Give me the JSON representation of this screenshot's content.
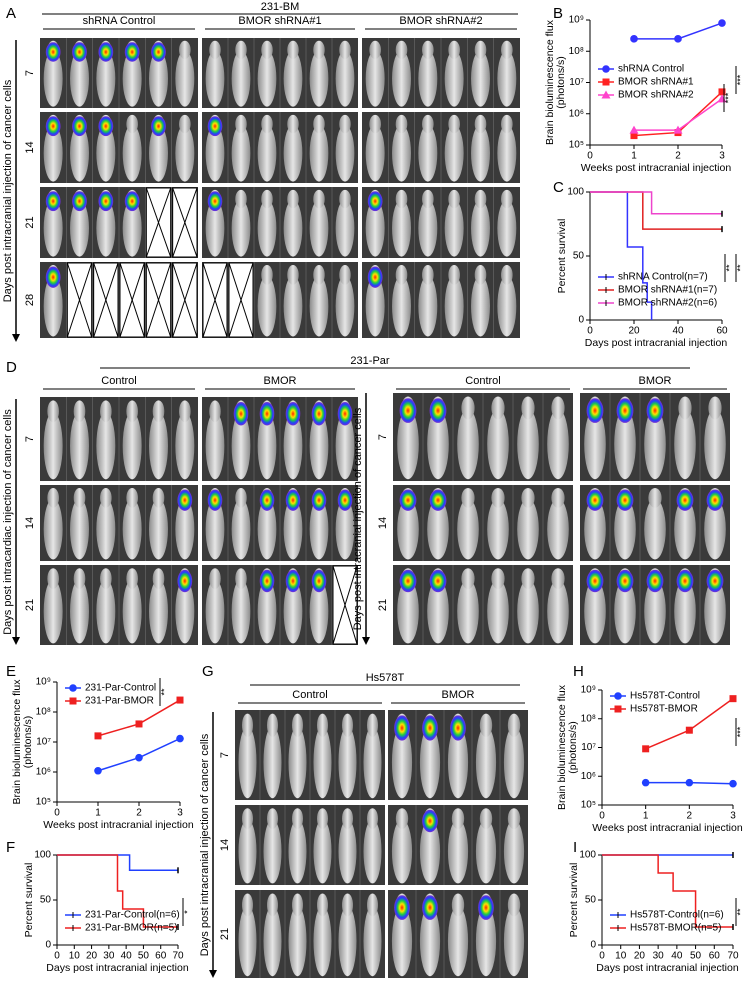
{
  "figure": {
    "panel_labels": [
      "A",
      "B",
      "C",
      "D",
      "E",
      "F",
      "G",
      "H",
      "I"
    ],
    "a": {
      "title": "231-BM",
      "groups": [
        "shRNA Control",
        "BMOR shRNA#1",
        "BMOR shRNA#2"
      ],
      "rows": [
        "7",
        "14",
        "21",
        "28"
      ],
      "axis_label": "Days post intracranial injection of cancer cells"
    },
    "d": {
      "title": "231-Par",
      "left": {
        "groups": [
          "Control",
          "BMOR"
        ],
        "rows": [
          "7",
          "14",
          "21"
        ],
        "axis_label": "Days post intracardiac injection of cancer cells"
      },
      "right": {
        "groups": [
          "Control",
          "BMOR"
        ],
        "rows": [
          "7",
          "14",
          "21"
        ],
        "axis_label": "Days post intracranial injection of cancer cells"
      }
    },
    "g": {
      "title": "Hs578T",
      "groups": [
        "Control",
        "BMOR"
      ],
      "rows": [
        "7",
        "14",
        "21"
      ],
      "axis_label": "Days post intracranial injection of cancer cells"
    }
  },
  "chart_data": [
    {
      "type": "line",
      "log_scale": true,
      "xlabel": "Weeks post intracranial injection",
      "ylabel": [
        "Brain bioluminescence flux",
        "(photons/s)"
      ],
      "x": [
        1,
        2,
        3
      ],
      "xlim": [
        0,
        3
      ],
      "xticks": [
        0,
        1,
        2,
        3
      ],
      "ylim": [
        100000,
        1000000000
      ],
      "yticks": [
        {
          "value": 100000,
          "label": "10⁵"
        },
        {
          "value": 1000000,
          "label": "10⁶"
        },
        {
          "value": 10000000,
          "label": "10⁷"
        },
        {
          "value": 100000000,
          "label": "10⁸"
        },
        {
          "value": 1000000000,
          "label": "10⁹"
        }
      ],
      "legend": "center left",
      "series": [
        {
          "name": "shRNA Control",
          "color": "#3333ff",
          "marker": "circle",
          "values": [
            250000000,
            250000000,
            800000000
          ]
        },
        {
          "name": "BMOR shRNA#1",
          "color": "#ff2222",
          "marker": "square",
          "values": [
            200000,
            250000,
            5000000
          ]
        },
        {
          "name": "BMOR shRNA#2",
          "color": "#ff44cc",
          "marker": "triangle",
          "values": [
            300000,
            300000,
            3000000
          ]
        }
      ],
      "annotations": [
        "***",
        "***"
      ]
    },
    {
      "type": "step",
      "xlabel": "Days post intracranial injection",
      "ylabel": "Percent survival",
      "xlim": [
        0,
        60
      ],
      "xticks": [
        0,
        20,
        40,
        60
      ],
      "ylim": [
        0,
        100
      ],
      "yticks": [
        0,
        50,
        100
      ],
      "legend": "lower left",
      "series": [
        {
          "name": "shRNA Control(n=7)",
          "color": "#3333ff",
          "x": [
            0,
            17,
            24,
            26,
            28
          ],
          "values": [
            100,
            57,
            29,
            14,
            0
          ]
        },
        {
          "name": "BMOR shRNA#1(n=7)",
          "color": "#e02020",
          "x": [
            0,
            24,
            60
          ],
          "values": [
            100,
            71,
            71
          ]
        },
        {
          "name": "BMOR shRNA#2(n=6)",
          "color": "#ee44cc",
          "x": [
            0,
            28,
            60
          ],
          "values": [
            100,
            83,
            83
          ]
        }
      ],
      "annotations": [
        "**",
        "**"
      ]
    },
    {
      "type": "line",
      "log_scale": true,
      "xlabel": "Weeks post intracranial injection",
      "ylabel": [
        "Brain bioluminescence flux",
        "(photons/s)"
      ],
      "x": [
        1,
        2,
        3
      ],
      "xlim": [
        0,
        3
      ],
      "xticks": [
        0,
        1,
        2,
        3
      ],
      "ylim": [
        100000,
        1000000000
      ],
      "yticks": [
        {
          "value": 100000,
          "label": "10⁵"
        },
        {
          "value": 1000000,
          "label": "10⁶"
        },
        {
          "value": 10000000,
          "label": "10⁷"
        },
        {
          "value": 100000000,
          "label": "10⁸"
        },
        {
          "value": 1000000000,
          "label": "10⁹"
        }
      ],
      "legend": "upper left",
      "series": [
        {
          "name": "231-Par-Control",
          "color": "#2040ff",
          "marker": "circle",
          "values": [
            1100000,
            3000000,
            13000000
          ]
        },
        {
          "name": "231-Par-BMOR",
          "color": "#ee2020",
          "marker": "square",
          "values": [
            16000000,
            40000000,
            250000000
          ]
        }
      ],
      "annotations": [
        "**"
      ]
    },
    {
      "type": "step",
      "xlabel": "Days post intracranial injection",
      "ylabel": "Percent survival",
      "xlim": [
        0,
        70
      ],
      "xticks": [
        0,
        10,
        20,
        30,
        40,
        50,
        60,
        70
      ],
      "ylim": [
        0,
        100
      ],
      "yticks": [
        0,
        50,
        100
      ],
      "legend": "lower left",
      "series": [
        {
          "name": "231-Par-Control(n=6)",
          "color": "#2040ff",
          "x": [
            0,
            42,
            70
          ],
          "values": [
            100,
            83,
            83
          ]
        },
        {
          "name": "231-Par-BMOR(n=5)",
          "color": "#ee2020",
          "x": [
            0,
            35,
            38,
            50,
            70
          ],
          "values": [
            100,
            60,
            40,
            20,
            20
          ]
        }
      ],
      "annotations": [
        "*"
      ]
    },
    {
      "type": "line",
      "log_scale": true,
      "xlabel": "Weeks post intracranial injection",
      "ylabel": [
        "Brain bioluminescence flux",
        "(photons/s)"
      ],
      "x": [
        1,
        2,
        3
      ],
      "xlim": [
        0,
        3
      ],
      "xticks": [
        0,
        1,
        2,
        3
      ],
      "ylim": [
        100000,
        1000000000
      ],
      "yticks": [
        {
          "value": 100000,
          "label": "10⁵"
        },
        {
          "value": 1000000,
          "label": "10⁶"
        },
        {
          "value": 10000000,
          "label": "10⁷"
        },
        {
          "value": 100000000,
          "label": "10⁸"
        },
        {
          "value": 1000000000,
          "label": "10⁹"
        }
      ],
      "legend": "upper left",
      "series": [
        {
          "name": "Hs578T-Control",
          "color": "#2040ff",
          "marker": "circle",
          "values": [
            600000,
            600000,
            550000
          ]
        },
        {
          "name": "Hs578T-BMOR",
          "color": "#ee2020",
          "marker": "square",
          "values": [
            9000000,
            40000000,
            500000000
          ]
        }
      ],
      "annotations": [
        "***"
      ]
    },
    {
      "type": "step",
      "xlabel": "Days post intracranial injection",
      "ylabel": "Percent survival",
      "xlim": [
        0,
        70
      ],
      "xticks": [
        0,
        10,
        20,
        30,
        40,
        50,
        60,
        70
      ],
      "ylim": [
        0,
        100
      ],
      "yticks": [
        0,
        50,
        100
      ],
      "legend": "lower left",
      "series": [
        {
          "name": "Hs578T-Control(n=6)",
          "color": "#2040ff",
          "x": [
            0,
            70
          ],
          "values": [
            100,
            100
          ]
        },
        {
          "name": "Hs578T-BMOR(n=5)",
          "color": "#ee2020",
          "x": [
            0,
            30,
            38,
            50,
            70
          ],
          "values": [
            100,
            80,
            60,
            20,
            20
          ]
        }
      ],
      "annotations": [
        "**"
      ]
    }
  ]
}
